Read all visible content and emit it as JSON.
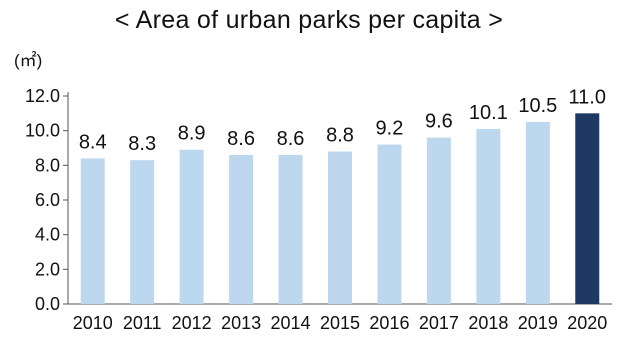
{
  "chart_data": {
    "type": "bar",
    "title": "< Area of urban parks per capita >",
    "ylabel": "(㎡)",
    "xlabel": "",
    "ylim": [
      0,
      12
    ],
    "yticks": [
      "0.0",
      "2.0",
      "4.0",
      "6.0",
      "8.0",
      "10.0",
      "12.0"
    ],
    "categories": [
      "2010",
      "2011",
      "2012",
      "2013",
      "2014",
      "2015",
      "2016",
      "2017",
      "2018",
      "2019",
      "2020"
    ],
    "values": [
      8.4,
      8.3,
      8.9,
      8.6,
      8.6,
      8.8,
      9.2,
      9.6,
      10.1,
      10.5,
      11.0
    ],
    "value_labels": [
      "8.4",
      "8.3",
      "8.9",
      "8.6",
      "8.6",
      "8.8",
      "9.2",
      "9.6",
      "10.1",
      "10.5",
      "11.0"
    ],
    "bar_color": "#bdd7ee",
    "highlight_color": "#1f3864",
    "highlight_index": 10,
    "grid": false,
    "legend": "none"
  }
}
